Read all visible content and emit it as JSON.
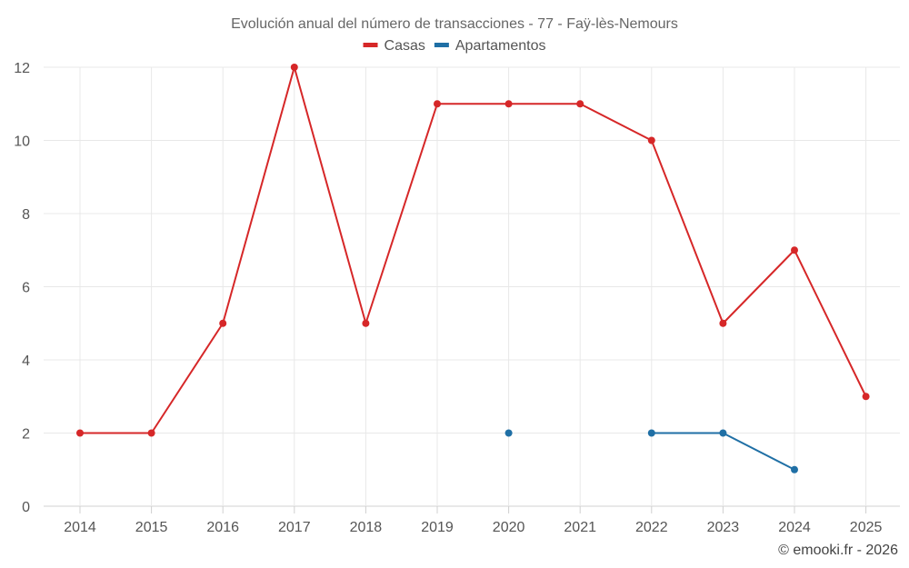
{
  "chart_data": {
    "type": "line",
    "title": "Evolución anual del número de transacciones - 77 - Faÿ-lès-Nemours",
    "xlabel": "",
    "ylabel": "",
    "categories": [
      "2014",
      "2015",
      "2016",
      "2017",
      "2018",
      "2019",
      "2020",
      "2021",
      "2022",
      "2023",
      "2024",
      "2025"
    ],
    "ylim": [
      0,
      12
    ],
    "yticks": [
      0,
      2,
      4,
      6,
      8,
      10,
      12
    ],
    "grid": true,
    "legend_position": "top-center",
    "series": [
      {
        "name": "Casas",
        "color": "#d62728",
        "values": [
          2,
          2,
          5,
          12,
          5,
          11,
          11,
          11,
          10,
          5,
          7,
          3
        ]
      },
      {
        "name": "Apartamentos",
        "color": "#1f6fa5",
        "values": [
          null,
          null,
          null,
          null,
          null,
          null,
          2,
          null,
          2,
          2,
          1,
          null
        ]
      }
    ]
  },
  "credit": "© emooki.fr - 2026"
}
